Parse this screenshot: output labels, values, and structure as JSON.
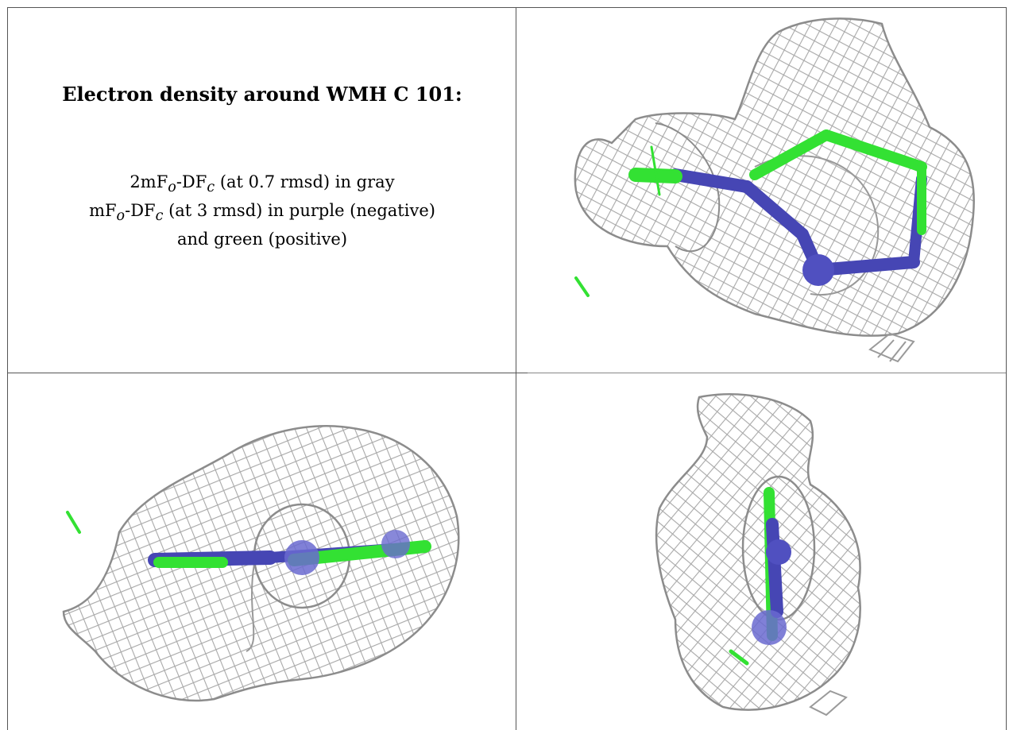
{
  "title": "Electron density around WMH C 101:",
  "legend": {
    "line1": {
      "pre": "2mF",
      "sub1": "o",
      "mid": "-DF",
      "sub2": "c",
      "post": " (at 0.7 rmsd) in gray"
    },
    "line2": {
      "pre": "mF",
      "sub1": "o",
      "mid": "-DF",
      "sub2": "c",
      "post": " (at 3 rmsd) in purple (negative)"
    },
    "line3": "and green (positive)"
  },
  "colors": {
    "mesh": "#a8a8a8",
    "positive": "#33e133",
    "negative": "#4646b4"
  },
  "views": [
    "density-view-top-right",
    "density-view-bottom-left",
    "density-view-bottom-right"
  ]
}
